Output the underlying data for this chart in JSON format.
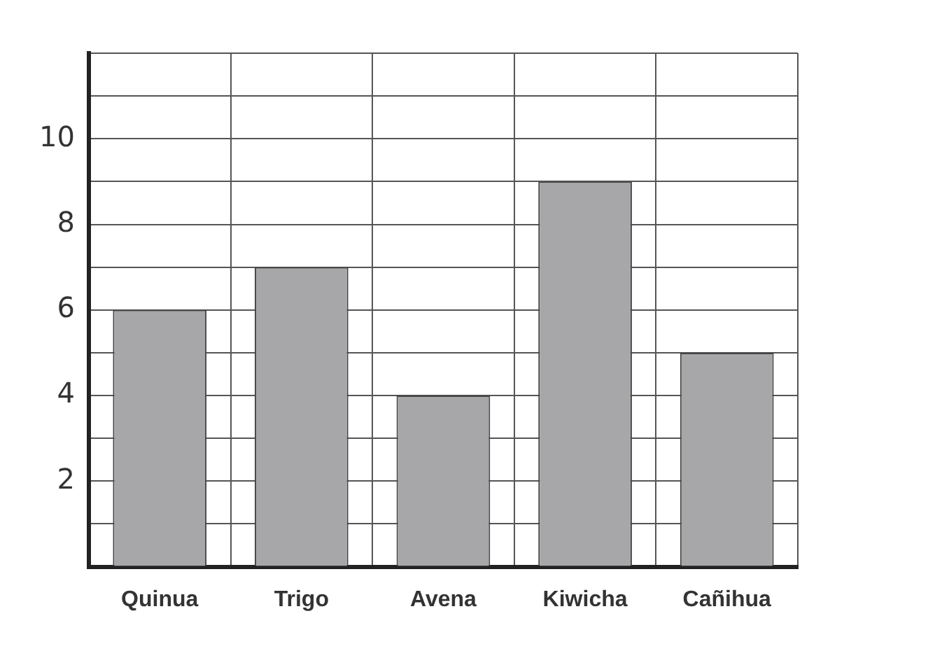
{
  "chart_data": {
    "type": "bar",
    "categories": [
      "Quinua",
      "Trigo",
      "Avena",
      "Kiwicha",
      "Cañihua"
    ],
    "values": [
      6,
      7,
      4,
      9,
      5
    ],
    "color": "#a7a7a9",
    "ylim": [
      0,
      12
    ],
    "yticks": [
      {
        "value": 0,
        "label": null
      },
      {
        "value": 1,
        "label": null
      },
      2,
      {
        "value": 3,
        "label": null
      },
      4,
      {
        "value": 5,
        "label": null
      },
      6,
      {
        "value": 7,
        "label": null
      },
      8,
      {
        "value": 9,
        "label": null
      },
      10,
      {
        "value": 11,
        "label": null
      },
      {
        "value": 12,
        "label": null
      }
    ],
    "grid": true,
    "legend": false
  }
}
